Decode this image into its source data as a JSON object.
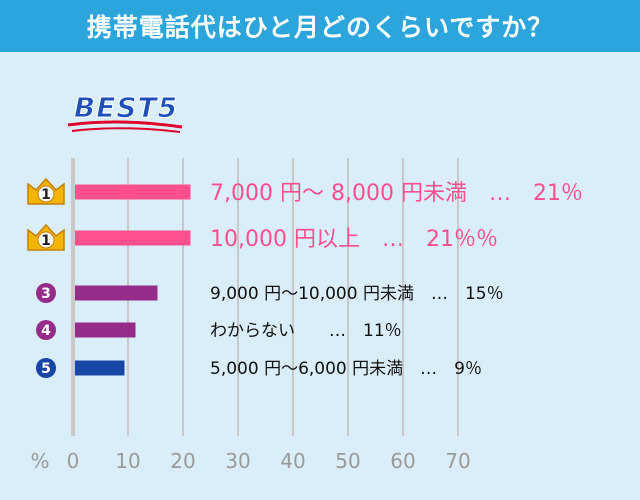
{
  "title": "携帯電話代はひと月どのくらいですか？",
  "badge": "BEST5",
  "colors": {
    "header": "#2ba5dc",
    "panel": "#d9eef8",
    "pink": "#ff4f8f",
    "purple": "#962c8a",
    "blue": "#1845a6",
    "grid": "#c8c8c8",
    "crown": "#f4b400"
  },
  "chart_data": {
    "type": "bar",
    "orientation": "horizontal",
    "xlabel": "%",
    "xlim": [
      0,
      70
    ],
    "xticks": [
      "0",
      "10",
      "20",
      "30",
      "40",
      "50",
      "60",
      "70"
    ],
    "grid": true,
    "bars": [
      {
        "rank": "1",
        "icon": "crown-icon",
        "value": 21,
        "color": "#ff4f8f",
        "label": "7,000 円～ 8,000 円未満　…　21％"
      },
      {
        "rank": "1",
        "icon": "crown-icon",
        "value": 21,
        "color": "#ff4f8f",
        "label": "10,000 円以上　…　21％％"
      },
      {
        "rank": "3",
        "icon": "rank-circle-icon",
        "value": 15,
        "color": "#962c8a",
        "label": "9,000 円～10,000 円未満　…　15％"
      },
      {
        "rank": "4",
        "icon": "rank-circle-icon",
        "value": 11,
        "color": "#962c8a",
        "label": "わからない　　…　11％"
      },
      {
        "rank": "5",
        "icon": "rank-circle-icon",
        "value": 9,
        "color": "#1845a6",
        "label": "5,000 円～6,000 円未満　…　9％"
      }
    ]
  }
}
